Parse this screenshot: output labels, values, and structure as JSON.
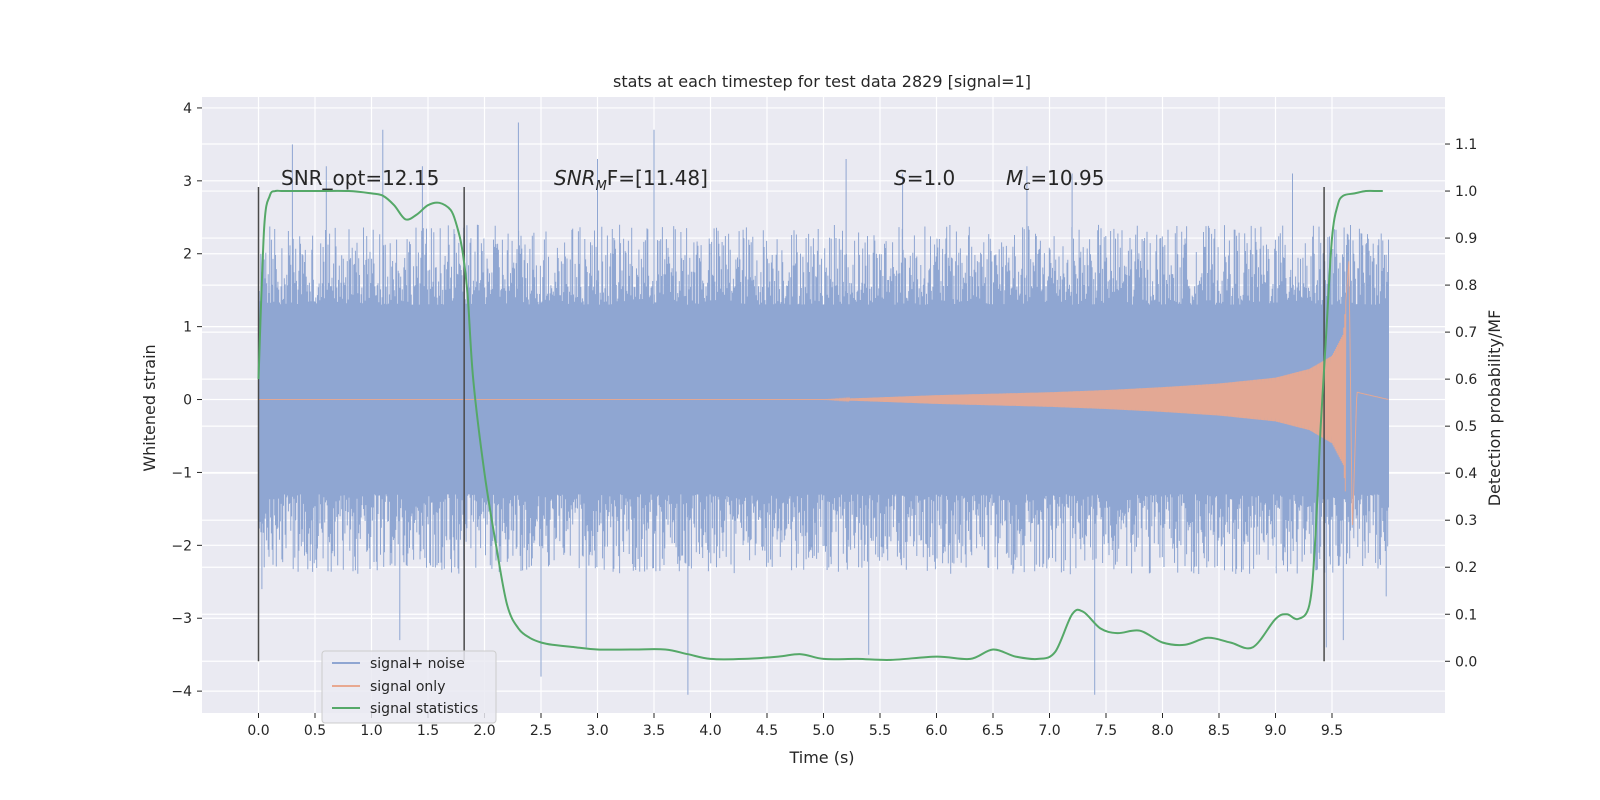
{
  "chart_data": {
    "type": "line",
    "title": "stats at each timestep for test data 2829 [signal=1]",
    "xlabel": "Time (s)",
    "ylabel": "Whitened strain",
    "y2label": "Detection probability/MF",
    "xlim": [
      -0.5,
      10.5
    ],
    "ylim": [
      -4.3,
      4.15
    ],
    "y2lim": [
      -0.11,
      1.2
    ],
    "xticks": [
      "0.0",
      "0.5",
      "1.0",
      "1.5",
      "2.0",
      "2.5",
      "3.0",
      "3.5",
      "4.0",
      "4.5",
      "5.0",
      "5.5",
      "6.0",
      "6.5",
      "7.0",
      "7.5",
      "8.0",
      "8.5",
      "9.0",
      "9.5"
    ],
    "yticks": [
      "−4",
      "−3",
      "−2",
      "−1",
      "0",
      "1",
      "2",
      "3",
      "4"
    ],
    "y2ticks": [
      "0.0",
      "0.1",
      "0.2",
      "0.3",
      "0.4",
      "0.5",
      "0.6",
      "0.7",
      "0.8",
      "0.9",
      "1.0",
      "1.1"
    ],
    "grid": true,
    "legend_position": "lower-left",
    "annotations": {
      "snr_opt": "SNR_opt=12.15",
      "snr_mf_prefix": "SNR",
      "snr_mf_sub": "M",
      "snr_mf_suffix": "F=[11.48]",
      "s_var": "S",
      "s_value": "=1.0",
      "mc_var": "M",
      "mc_sub": "c",
      "mc_value": "=10.95"
    },
    "vertical_markers_x": [
      0.0,
      1.82,
      9.43
    ],
    "series": [
      {
        "name": "signal+ noise",
        "color": "#8fa6d2",
        "kind": "noise_envelope",
        "t_range": [
          0.0,
          10.0
        ],
        "core_band": [
          -1.3,
          1.3
        ],
        "typical_peak_max": 2.4,
        "typical_peak_min": -2.4,
        "spikes": [
          [
            0.02,
            2.0
          ],
          [
            0.03,
            -2.6
          ],
          [
            0.3,
            3.5
          ],
          [
            0.6,
            3.2
          ],
          [
            1.1,
            3.7
          ],
          [
            1.25,
            -3.3
          ],
          [
            1.45,
            3.2
          ],
          [
            2.3,
            3.8
          ],
          [
            2.5,
            -3.8
          ],
          [
            2.9,
            -3.4
          ],
          [
            3.0,
            3.3
          ],
          [
            3.8,
            -4.05
          ],
          [
            3.5,
            3.7
          ],
          [
            5.2,
            3.3
          ],
          [
            5.4,
            -3.5
          ],
          [
            5.7,
            3.1
          ],
          [
            6.8,
            3.2
          ],
          [
            7.2,
            3.1
          ],
          [
            7.4,
            -4.05
          ],
          [
            9.15,
            3.1
          ],
          [
            9.45,
            -3.4
          ],
          [
            9.6,
            -3.3
          ],
          [
            9.98,
            -2.7
          ]
        ]
      },
      {
        "name": "signal only",
        "color": "#e8a890",
        "kind": "chirp",
        "t_range": [
          0.0,
          10.0
        ],
        "merger_time": 9.68,
        "peak_values": [
          [
            5.0,
            0.0
          ],
          [
            5.5,
            0.03
          ],
          [
            6.0,
            0.06
          ],
          [
            6.5,
            0.08
          ],
          [
            7.0,
            0.1
          ],
          [
            7.5,
            0.13
          ],
          [
            8.0,
            0.17
          ],
          [
            8.5,
            0.22
          ],
          [
            9.0,
            0.3
          ],
          [
            9.3,
            0.42
          ],
          [
            9.5,
            0.6
          ],
          [
            9.6,
            0.9
          ],
          [
            9.65,
            1.9
          ],
          [
            9.68,
            -1.8
          ],
          [
            9.72,
            0.1
          ],
          [
            10.0,
            0.0
          ]
        ]
      },
      {
        "name": "signal statistics",
        "color": "#55a868",
        "axis": "right",
        "x": [
          0.0,
          0.05,
          0.1,
          0.15,
          0.2,
          0.3,
          0.5,
          0.8,
          1.0,
          1.1,
          1.2,
          1.3,
          1.4,
          1.5,
          1.6,
          1.7,
          1.75,
          1.8,
          1.85,
          1.9,
          2.0,
          2.1,
          2.2,
          2.3,
          2.4,
          2.5,
          2.6,
          2.8,
          3.0,
          3.3,
          3.6,
          3.8,
          4.0,
          4.3,
          4.6,
          4.8,
          5.0,
          5.3,
          5.6,
          6.0,
          6.3,
          6.5,
          6.7,
          6.9,
          7.05,
          7.2,
          7.3,
          7.45,
          7.6,
          7.8,
          8.0,
          8.2,
          8.4,
          8.6,
          8.8,
          9.0,
          9.1,
          9.2,
          9.3,
          9.35,
          9.4,
          9.45,
          9.5,
          9.55,
          9.6,
          9.7,
          9.8,
          9.9,
          9.95
        ],
        "y": [
          0.6,
          0.92,
          0.99,
          1.0,
          1.0,
          1.0,
          1.0,
          1.0,
          0.995,
          0.99,
          0.97,
          0.94,
          0.95,
          0.97,
          0.975,
          0.96,
          0.93,
          0.88,
          0.78,
          0.6,
          0.4,
          0.25,
          0.12,
          0.07,
          0.05,
          0.04,
          0.035,
          0.03,
          0.025,
          0.025,
          0.025,
          0.015,
          0.005,
          0.005,
          0.01,
          0.015,
          0.005,
          0.005,
          0.003,
          0.01,
          0.005,
          0.025,
          0.01,
          0.005,
          0.02,
          0.1,
          0.105,
          0.07,
          0.06,
          0.065,
          0.04,
          0.035,
          0.05,
          0.04,
          0.03,
          0.09,
          0.1,
          0.09,
          0.12,
          0.25,
          0.5,
          0.7,
          0.9,
          0.97,
          0.99,
          0.995,
          1.0,
          1.0,
          1.0
        ]
      }
    ]
  }
}
